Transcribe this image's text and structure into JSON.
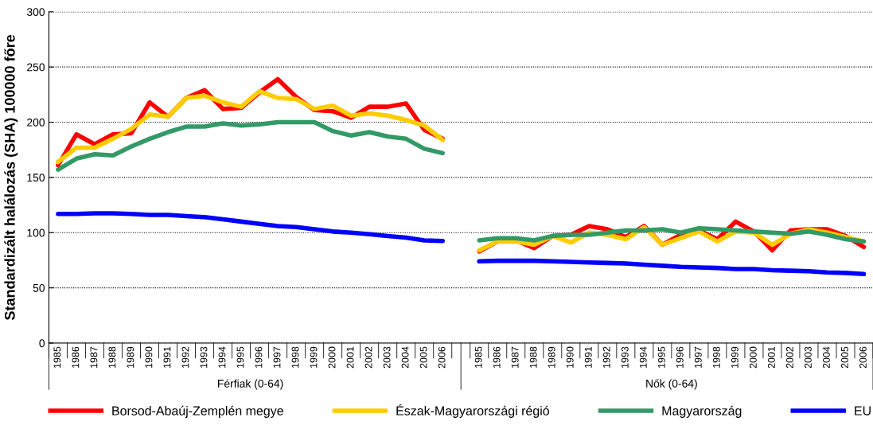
{
  "chart_data": {
    "type": "line",
    "ylabel": "Standardizált halálozás (SHA) 100000 főre",
    "categories": [
      "1985",
      "1986",
      "1987",
      "1988",
      "1989",
      "1990",
      "1991",
      "1992",
      "1993",
      "1994",
      "1995",
      "1996",
      "1997",
      "1998",
      "1999",
      "2000",
      "2001",
      "2002",
      "2003",
      "2004",
      "2005",
      "2006",
      null,
      "1985",
      "1986",
      "1987",
      "1988",
      "1989",
      "1990",
      "1991",
      "1992",
      "1993",
      "1994",
      "1995",
      "1996",
      "1997",
      "1998",
      "1999",
      "2000",
      "2001",
      "2002",
      "2003",
      "2004",
      "2005",
      "2006"
    ],
    "series": [
      {
        "name": "Borsod-Abaúj-Zemplén megye",
        "color": "#ff0000",
        "values": [
          161,
          189,
          180,
          189,
          190,
          218,
          205,
          222,
          229,
          212,
          213,
          227,
          239,
          223,
          211,
          210,
          204,
          214,
          214,
          217,
          193,
          185,
          null,
          83,
          92,
          93,
          86,
          97,
          98,
          106,
          103,
          96,
          106,
          89,
          98,
          102,
          94,
          110,
          101,
          84,
          102,
          103,
          103,
          97,
          87
        ]
      },
      {
        "name": "Észak-Magyarországi régió",
        "color": "#ffcc00",
        "values": [
          164,
          177,
          177,
          185,
          194,
          207,
          205,
          222,
          224,
          218,
          214,
          228,
          222,
          221,
          212,
          215,
          206,
          208,
          206,
          202,
          197,
          184,
          null,
          84,
          92,
          92,
          89,
          97,
          91,
          100,
          98,
          94,
          105,
          89,
          95,
          101,
          92,
          101,
          100,
          89,
          99,
          103,
          100,
          96,
          92
        ]
      },
      {
        "name": "Magyarország",
        "color": "#339966",
        "values": [
          157,
          167,
          171,
          170,
          178,
          185,
          191,
          196,
          196,
          199,
          197,
          198,
          200,
          200,
          200,
          192,
          188,
          191,
          187,
          185,
          176,
          172,
          null,
          93,
          95,
          95,
          93,
          97,
          98,
          98,
          100,
          102,
          102,
          103,
          100,
          104,
          103,
          102,
          101,
          100,
          99,
          101,
          98,
          94,
          92
        ]
      },
      {
        "name": "EU",
        "color": "#0000ff",
        "values": [
          117,
          117,
          117.5,
          117.5,
          117,
          116,
          116,
          115,
          114,
          112,
          110,
          108,
          106,
          105,
          103,
          101,
          100,
          98.5,
          97,
          95.5,
          93,
          92.5,
          null,
          74,
          74.5,
          74.5,
          74.5,
          74,
          73.5,
          73,
          72.5,
          72,
          71,
          70,
          69,
          68.5,
          68,
          67,
          67,
          66,
          65.5,
          65,
          64,
          63.5,
          62.5
        ]
      }
    ],
    "ylim": [
      0,
      300
    ],
    "yticks": [
      0,
      50,
      100,
      150,
      200,
      250,
      300
    ],
    "grid": "y",
    "legend": "bottom",
    "line_style": "solid",
    "marker": "none",
    "annotations": [
      "Férfiak (0-64)",
      "Nők (0-64)"
    ]
  }
}
